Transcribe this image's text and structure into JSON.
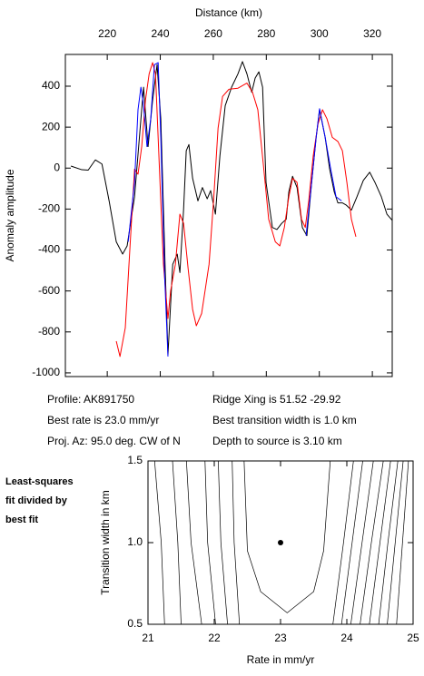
{
  "chart_data": [
    {
      "type": "line",
      "xlabel": "Distance (km)",
      "ylabel": "Anomaly amplitude",
      "xlim": [
        204.2,
        327.5
      ],
      "xticks": [
        220,
        240,
        260,
        280,
        300,
        320
      ],
      "ylim": [
        -1018,
        555
      ],
      "yticks": [
        400,
        200,
        0,
        -200,
        -400,
        -600,
        -800,
        -1000
      ],
      "series": [
        {
          "color": "#000000",
          "x": [
            206.3,
            210.4,
            212.8,
            215.5,
            218,
            220.7,
            223.4,
            225.8,
            227.5,
            230.3,
            232.7,
            233.7,
            235.4,
            237.1,
            238.8,
            240.2,
            241.9,
            242.9,
            244.7,
            246.4,
            247.4,
            248.8,
            249.8,
            250.8,
            252.2,
            254.2,
            255.9,
            257.7,
            259,
            260.8,
            262.5,
            264.5,
            266.9,
            269.3,
            271,
            272.7,
            274.5,
            275.8,
            277.2,
            278.6,
            279.9,
            282.3,
            284,
            285.8,
            287.5,
            288.5,
            289.9,
            291.6,
            293.6,
            295.3,
            297.1,
            298.8,
            300.1,
            302.2,
            303.9,
            305.6,
            307,
            308.7,
            310.1,
            312.1,
            314.2,
            316.6,
            319,
            321,
            323.4,
            325.5,
            327.5
          ],
          "values": [
            10,
            -8,
            -10,
            40,
            20,
            -160,
            -360,
            -420,
            -380,
            -140,
            240,
            395,
            105,
            330,
            505,
            240,
            -510,
            -910,
            -470,
            -420,
            -510,
            -200,
            85,
            115,
            -50,
            -160,
            -95,
            -150,
            -110,
            -225,
            60,
            305,
            395,
            460,
            520,
            460,
            370,
            440,
            470,
            395,
            -70,
            -290,
            -300,
            -270,
            -250,
            -115,
            -40,
            -95,
            -290,
            -330,
            -70,
            150,
            285,
            150,
            -5,
            -115,
            -170,
            -170,
            -180,
            -205,
            -140,
            -60,
            -20,
            -70,
            -140,
            -225,
            -255
          ]
        },
        {
          "color": "#ff0000",
          "x": [
            223.4,
            224.8,
            226.8,
            228.6,
            230.3,
            231.6,
            233,
            234.4,
            235.8,
            237.1,
            238.2,
            239.9,
            241.2,
            242.9,
            243.9,
            245.7,
            247.4,
            248.8,
            250.5,
            252.2,
            253.6,
            255.6,
            258.4,
            260.1,
            261.8,
            263.5,
            265.9,
            269.3,
            272.7,
            274.8,
            276.8,
            278.9,
            280.9,
            283.4,
            285.1,
            286.8,
            288.5,
            289.9,
            291.6,
            293.3,
            294.7,
            296,
            297.7,
            299.5,
            301.2,
            302.9,
            304.9,
            307,
            308.7,
            310.4,
            312.1,
            313.8
          ],
          "values": [
            -845,
            -920,
            -780,
            -380,
            -5,
            -30,
            105,
            330,
            460,
            515,
            460,
            -70,
            -470,
            -735,
            -600,
            -470,
            -225,
            -270,
            -490,
            -690,
            -770,
            -710,
            -470,
            -160,
            195,
            350,
            385,
            390,
            415,
            370,
            285,
            15,
            -250,
            -360,
            -380,
            -290,
            -140,
            -50,
            -70,
            -250,
            -290,
            -160,
            60,
            215,
            285,
            240,
            150,
            130,
            85,
            -70,
            -250,
            -335
          ]
        },
        {
          "color": "#0000ff",
          "x": [
            227.9,
            230.3,
            231.6,
            232.7,
            233.7,
            235,
            236.4,
            237.8,
            239.2,
            240.2,
            241.6,
            242.9,
            null,
            295,
            297.1,
            298.8,
            300.1,
            302.2,
            304.3,
            306.3,
            308.4
          ],
          "values": [
            -360,
            -70,
            285,
            395,
            305,
            105,
            240,
            505,
            515,
            150,
            -510,
            -920,
            null,
            -330,
            -70,
            150,
            290,
            150,
            -5,
            -140,
            -160
          ]
        }
      ],
      "annotations": [
        "Profile: AK891750",
        "Best rate is 23.0 mm/yr",
        "Proj. Az: 95.0 deg. CW of N",
        "Ridge Xing is 51.52 -29.92",
        "Best transition width is 1.0 km",
        "Depth to source is   3.10 km"
      ]
    },
    {
      "type": "contour",
      "note": [
        "Least-squares",
        "fit divided by",
        "best fit"
      ],
      "xlabel": "Rate in mm/yr",
      "ylabel": "Transition width in km",
      "xlim": [
        21,
        25
      ],
      "xticks": [
        21,
        22,
        23,
        24,
        25
      ],
      "ylim": [
        0.5,
        1.5
      ],
      "yticks": [
        1.5,
        {
          "value": 1.0,
          "label": "1.0"
        },
        0.5
      ],
      "line_color": "#000000",
      "contours": [
        {
          "x": [
            21.1,
            21.2,
            21.25
          ],
          "y": [
            1.5,
            1.0,
            0.5
          ]
        },
        {
          "x": [
            21.37,
            21.45,
            21.5
          ],
          "y": [
            1.5,
            1.0,
            0.5
          ]
        },
        {
          "x": [
            21.58,
            21.65,
            21.81
          ],
          "y": [
            1.5,
            1.0,
            0.5
          ]
        },
        {
          "x": [
            21.86,
            21.9,
            22.02
          ],
          "y": [
            1.5,
            1.0,
            0.5
          ]
        },
        {
          "x": [
            22.06,
            22.1,
            22.2
          ],
          "y": [
            1.5,
            1.0,
            0.5
          ]
        },
        {
          "x": [
            22.27,
            22.3,
            22.38
          ],
          "y": [
            1.5,
            1.0,
            0.5
          ]
        },
        {
          "x": [
            22.45,
            22.5,
            22.7,
            23.1,
            23.5,
            23.65,
            23.75
          ],
          "y": [
            1.5,
            0.95,
            0.7,
            0.57,
            0.7,
            0.95,
            1.5
          ]
        },
        {
          "x": [
            24.1,
            23.95,
            23.79
          ],
          "y": [
            1.5,
            1.0,
            0.5
          ]
        },
        {
          "x": [
            24.24,
            24.08,
            23.92
          ],
          "y": [
            1.5,
            1.0,
            0.5
          ]
        },
        {
          "x": [
            24.4,
            24.23,
            24.06
          ],
          "y": [
            1.5,
            1.0,
            0.5
          ]
        },
        {
          "x": [
            24.55,
            24.37,
            24.2
          ],
          "y": [
            1.5,
            1.0,
            0.5
          ]
        },
        {
          "x": [
            24.66,
            24.5,
            24.34
          ],
          "y": [
            1.5,
            1.0,
            0.5
          ]
        },
        {
          "x": [
            24.77,
            24.62,
            24.48
          ],
          "y": [
            1.5,
            1.0,
            0.5
          ]
        },
        {
          "x": [
            24.85,
            24.73,
            24.61
          ],
          "y": [
            1.5,
            1.0,
            0.5
          ]
        },
        {
          "x": [
            24.93,
            24.84,
            24.75
          ],
          "y": [
            1.5,
            1.0,
            0.5
          ]
        }
      ],
      "points": {
        "x": [
          23
        ],
        "y": [
          1.0
        ]
      }
    }
  ]
}
